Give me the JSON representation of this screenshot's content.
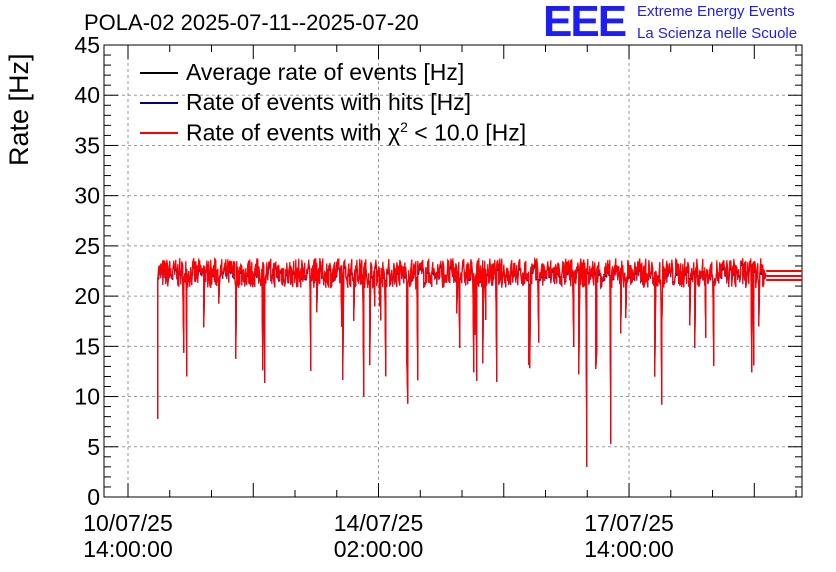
{
  "title": "POLA-02 2025-07-11--2025-07-20",
  "logo": {
    "text": "EEE",
    "line1": "Extreme Energy Events",
    "line2": "La Scienza nelle Scuole",
    "color": "#1e1ef0"
  },
  "chart_data": {
    "type": "line",
    "ylabel": "Rate [Hz]",
    "ylim": [
      0,
      45
    ],
    "y_ticks": [
      0,
      5,
      10,
      15,
      20,
      25,
      30,
      35,
      40,
      45
    ],
    "x_ticks": [
      {
        "date": "10/07/25",
        "time": "14:00:00"
      },
      {
        "date": "14/07/25",
        "time": "02:00:00"
      },
      {
        "date": "17/07/25",
        "time": "14:00:00"
      }
    ],
    "xlim": [
      "2025-07-10 14:00",
      "2025-07-20 00:00"
    ],
    "grid": true,
    "legend_position": "top-left",
    "series": [
      {
        "name": "Average rate of events [Hz]",
        "color": "#000000",
        "values_hz_approx": [
          22.3,
          22.3,
          22.3
        ]
      },
      {
        "name": "Rate of events with hits [Hz]",
        "color": "#00008b",
        "values_hz_approx": [
          22.0,
          22.0,
          22.0
        ]
      },
      {
        "name": "Rate of events with χ² < 10.0 [Hz]",
        "color": "#ff0000",
        "values_hz_approx": [
          22.5,
          22.0,
          21.6
        ]
      }
    ],
    "data_start": "2025-07-11 00:00",
    "data_end": "2025-07-19 12:00",
    "typical_rate_hz": 22.3,
    "notable_dips": [
      {
        "time": "2025-07-11 00:10",
        "value": 7.8
      },
      {
        "time": "2025-07-13 21:00",
        "value": 10.0
      },
      {
        "time": "2025-07-14 12:00",
        "value": 9.3
      },
      {
        "time": "2025-07-17 00:00",
        "value": 3.0
      },
      {
        "time": "2025-07-17 08:00",
        "value": 5.3
      },
      {
        "time": "2025-07-18 01:00",
        "value": 9.2
      },
      {
        "time": "2025-07-19 08:00",
        "value": 13.1
      }
    ]
  },
  "legend_labels": {
    "avg": "Average rate of events [Hz]",
    "hits": "Rate of events with hits [Hz]",
    "chi_prefix": "Rate of events with χ",
    "chi_sup": "2",
    "chi_suffix": " < 10.0 [Hz]"
  }
}
